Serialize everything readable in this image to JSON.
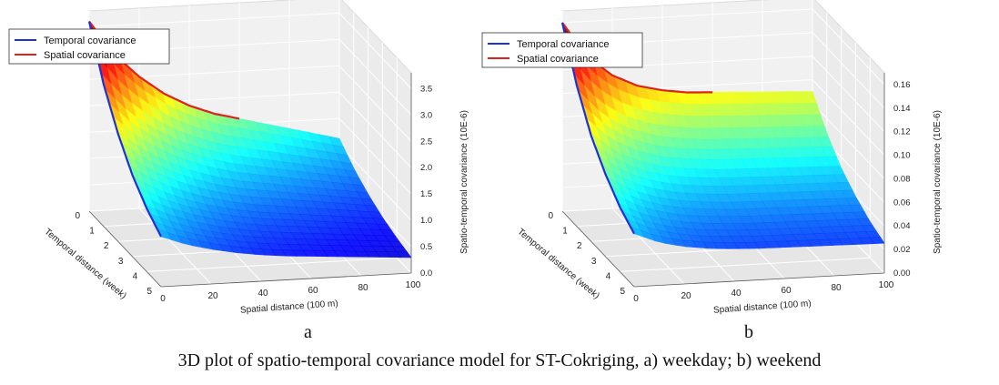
{
  "caption": "3D plot of spatio-temporal covariance model for ST-Cokriging, a) weekday; b) weekend",
  "chart_data": [
    {
      "type": "surface3d",
      "panel_label": "a",
      "xlabel": "Spatial distance (100 m)",
      "ylabel": "Temporal distance (week)",
      "zlabel": "Spatio-temporal covariance (10E-6)",
      "x_ticks": [
        "0",
        "20",
        "40",
        "60",
        "80",
        "100"
      ],
      "y_ticks": [
        "0",
        "1",
        "2",
        "3",
        "4",
        "5"
      ],
      "z_ticks": [
        "0.0",
        "0.5",
        "1.0",
        "1.5",
        "2.0",
        "2.5",
        "3.0",
        "3.5"
      ],
      "xlim": [
        0,
        100
      ],
      "ylim": [
        0,
        5
      ],
      "zlim": [
        0,
        3.8
      ],
      "legend": [
        "Temporal covariance",
        "Spatial covariance"
      ],
      "legend_position": "top-left",
      "series": [
        {
          "name": "Spatial covariance",
          "color": "#e0201b",
          "x": [
            0,
            10,
            20,
            30,
            40,
            50,
            60
          ],
          "y": [
            0,
            0,
            0,
            0,
            0,
            0,
            0
          ],
          "z": [
            3.6,
            2.95,
            2.5,
            2.15,
            1.9,
            1.72,
            1.6
          ]
        },
        {
          "name": "Temporal covariance",
          "color": "#2030d8",
          "x": [
            0,
            0,
            0,
            0,
            0,
            0
          ],
          "y": [
            0,
            1,
            2,
            3,
            4,
            5
          ],
          "z": [
            3.6,
            2.7,
            2.05,
            1.55,
            1.2,
            0.95
          ]
        }
      ],
      "surface_colormap": "jet"
    },
    {
      "type": "surface3d",
      "panel_label": "b",
      "xlabel": "Spatial distance (100 m)",
      "ylabel": "Temporal distance (week)",
      "zlabel": "Spatio-temporal covariance (10E-6)",
      "x_ticks": [
        "0",
        "20",
        "40",
        "60",
        "80",
        "100"
      ],
      "y_ticks": [
        "0",
        "1",
        "2",
        "3",
        "4",
        "5"
      ],
      "z_ticks": [
        "0.00",
        "0.02",
        "0.04",
        "0.06",
        "0.08",
        "0.10",
        "0.12",
        "0.14",
        "0.16"
      ],
      "xlim": [
        0,
        100
      ],
      "ylim": [
        0,
        5
      ],
      "zlim": [
        0,
        0.17
      ],
      "legend": [
        "Temporal covariance",
        "Spatial covariance"
      ],
      "legend_position": "top-left",
      "series": [
        {
          "name": "Spatial covariance",
          "color": "#e0201b",
          "x": [
            0,
            10,
            20,
            30,
            40,
            50,
            60
          ],
          "y": [
            0,
            0,
            0,
            0,
            0,
            0,
            0
          ],
          "z": [
            0.16,
            0.13,
            0.113,
            0.103,
            0.098,
            0.095,
            0.094
          ]
        },
        {
          "name": "Temporal covariance",
          "color": "#2030d8",
          "x": [
            0,
            0,
            0,
            0,
            0,
            0
          ],
          "y": [
            0,
            1,
            2,
            3,
            4,
            5
          ],
          "z": [
            0.16,
            0.12,
            0.09,
            0.07,
            0.055,
            0.045
          ]
        }
      ],
      "surface_colormap": "jet"
    }
  ]
}
